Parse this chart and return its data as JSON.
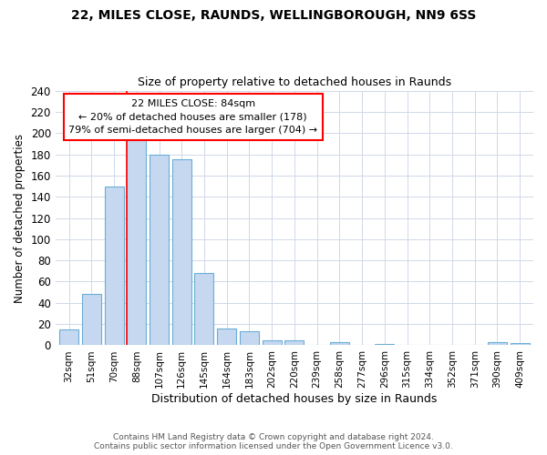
{
  "title1": "22, MILES CLOSE, RAUNDS, WELLINGBOROUGH, NN9 6SS",
  "title2": "Size of property relative to detached houses in Raunds",
  "xlabel": "Distribution of detached houses by size in Raunds",
  "ylabel": "Number of detached properties",
  "bar_labels": [
    "32sqm",
    "51sqm",
    "70sqm",
    "88sqm",
    "107sqm",
    "126sqm",
    "145sqm",
    "164sqm",
    "183sqm",
    "202sqm",
    "220sqm",
    "239sqm",
    "258sqm",
    "277sqm",
    "296sqm",
    "315sqm",
    "334sqm",
    "352sqm",
    "371sqm",
    "390sqm",
    "409sqm"
  ],
  "bar_values": [
    15,
    48,
    150,
    200,
    180,
    175,
    68,
    16,
    13,
    5,
    5,
    0,
    3,
    0,
    1,
    0,
    0,
    0,
    0,
    3,
    2
  ],
  "bar_color": "#c5d8f0",
  "bar_edge_color": "#6aaed6",
  "vline_color": "red",
  "annotation_title": "22 MILES CLOSE: 84sqm",
  "annotation_line1": "← 20% of detached houses are smaller (178)",
  "annotation_line2": "79% of semi-detached houses are larger (704) →",
  "annotation_box_color": "white",
  "annotation_box_edge_color": "red",
  "ylim": [
    0,
    240
  ],
  "footer1": "Contains HM Land Registry data © Crown copyright and database right 2024.",
  "footer2": "Contains public sector information licensed under the Open Government Licence v3.0."
}
